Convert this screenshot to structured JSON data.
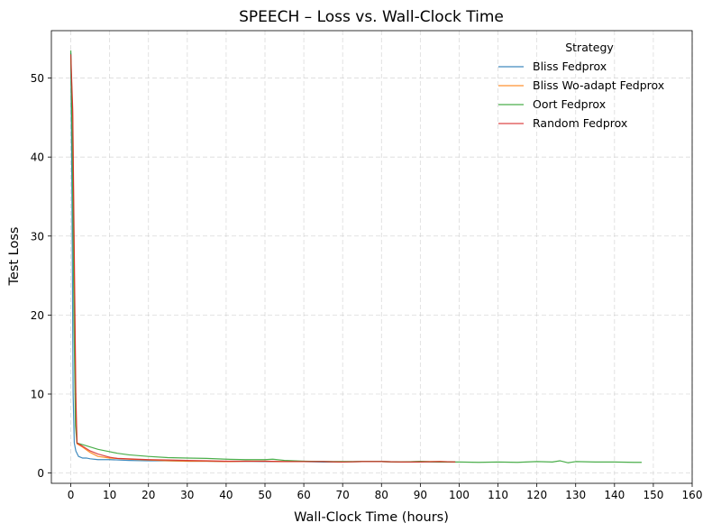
{
  "chart_data": {
    "type": "line",
    "title": "SPEECH – Loss vs. Wall-Clock Time",
    "xlabel": "Wall-Clock Time (hours)",
    "ylabel": "Test Loss",
    "xlim": [
      -5,
      160
    ],
    "ylim": [
      -1.3,
      56
    ],
    "xticks": [
      0,
      10,
      20,
      30,
      40,
      50,
      60,
      70,
      80,
      90,
      100,
      110,
      120,
      130,
      140,
      150,
      160
    ],
    "yticks": [
      0,
      10,
      20,
      30,
      40,
      50
    ],
    "grid": true,
    "legend": {
      "title": "Strategy",
      "placement": "top-right"
    },
    "series": [
      {
        "name": "Bliss Fedprox",
        "color": "#1f77b4",
        "points": [
          [
            0,
            53.2
          ],
          [
            0.3,
            35
          ],
          [
            0.6,
            10
          ],
          [
            0.9,
            3.8
          ],
          [
            1.3,
            2.8
          ],
          [
            2,
            2.1
          ],
          [
            3,
            1.9
          ],
          [
            4,
            1.9
          ],
          [
            5,
            1.8
          ],
          [
            7,
            1.7
          ],
          [
            10,
            1.7
          ],
          [
            15,
            1.6
          ],
          [
            20,
            1.55
          ],
          [
            25,
            1.55
          ],
          [
            30,
            1.5
          ],
          [
            35,
            1.5
          ],
          [
            40,
            1.45
          ],
          [
            45,
            1.5
          ],
          [
            50,
            1.45
          ],
          [
            55,
            1.45
          ],
          [
            60,
            1.45
          ],
          [
            65,
            1.4
          ],
          [
            70,
            1.4
          ],
          [
            75,
            1.45
          ],
          [
            80,
            1.45
          ],
          [
            85,
            1.4
          ],
          [
            90,
            1.45
          ],
          [
            95,
            1.4
          ],
          [
            99,
            1.4
          ]
        ]
      },
      {
        "name": "Bliss Wo-adapt Fedprox",
        "color": "#ff7f0e",
        "points": [
          [
            0,
            52.5
          ],
          [
            0.5,
            45
          ],
          [
            0.9,
            25
          ],
          [
            1.3,
            8
          ],
          [
            1.6,
            3.7
          ],
          [
            3,
            3.3
          ],
          [
            5,
            2.6
          ],
          [
            7,
            2.1
          ],
          [
            10,
            1.9
          ],
          [
            15,
            1.75
          ],
          [
            20,
            1.65
          ],
          [
            25,
            1.55
          ],
          [
            30,
            1.5
          ],
          [
            35,
            1.5
          ],
          [
            40,
            1.45
          ],
          [
            45,
            1.5
          ],
          [
            50,
            1.5
          ],
          [
            55,
            1.45
          ],
          [
            60,
            1.45
          ],
          [
            65,
            1.45
          ],
          [
            70,
            1.4
          ],
          [
            75,
            1.45
          ],
          [
            80,
            1.45
          ],
          [
            85,
            1.4
          ],
          [
            90,
            1.45
          ],
          [
            95,
            1.45
          ],
          [
            99,
            1.4
          ]
        ]
      },
      {
        "name": "Oort Fedprox",
        "color": "#2ca02c",
        "points": [
          [
            0,
            53.5
          ],
          [
            0.4,
            40
          ],
          [
            0.8,
            20
          ],
          [
            1.2,
            6
          ],
          [
            1.6,
            3.8
          ],
          [
            3,
            3.6
          ],
          [
            5,
            3.3
          ],
          [
            7,
            3.0
          ],
          [
            10,
            2.7
          ],
          [
            12,
            2.5
          ],
          [
            15,
            2.3
          ],
          [
            20,
            2.1
          ],
          [
            25,
            1.95
          ],
          [
            30,
            1.9
          ],
          [
            35,
            1.85
          ],
          [
            40,
            1.75
          ],
          [
            45,
            1.7
          ],
          [
            50,
            1.7
          ],
          [
            52,
            1.75
          ],
          [
            55,
            1.6
          ],
          [
            60,
            1.5
          ],
          [
            65,
            1.45
          ],
          [
            70,
            1.45
          ],
          [
            75,
            1.45
          ],
          [
            80,
            1.45
          ],
          [
            85,
            1.4
          ],
          [
            90,
            1.45
          ],
          [
            95,
            1.4
          ],
          [
            100,
            1.4
          ],
          [
            105,
            1.35
          ],
          [
            110,
            1.4
          ],
          [
            115,
            1.35
          ],
          [
            120,
            1.45
          ],
          [
            124,
            1.4
          ],
          [
            126,
            1.55
          ],
          [
            128,
            1.3
          ],
          [
            130,
            1.45
          ],
          [
            135,
            1.4
          ],
          [
            140,
            1.4
          ],
          [
            145,
            1.35
          ],
          [
            147,
            1.35
          ]
        ]
      },
      {
        "name": "Random Fedprox",
        "color": "#d62728",
        "points": [
          [
            0,
            53.0
          ],
          [
            0.5,
            46
          ],
          [
            0.9,
            28
          ],
          [
            1.3,
            10
          ],
          [
            1.6,
            3.8
          ],
          [
            3,
            3.4
          ],
          [
            5,
            2.8
          ],
          [
            7,
            2.4
          ],
          [
            10,
            2.0
          ],
          [
            12,
            1.85
          ],
          [
            15,
            1.8
          ],
          [
            20,
            1.7
          ],
          [
            25,
            1.65
          ],
          [
            30,
            1.6
          ],
          [
            35,
            1.55
          ],
          [
            40,
            1.5
          ],
          [
            45,
            1.5
          ],
          [
            50,
            1.5
          ],
          [
            55,
            1.45
          ],
          [
            60,
            1.45
          ],
          [
            65,
            1.45
          ],
          [
            70,
            1.4
          ],
          [
            75,
            1.45
          ],
          [
            80,
            1.45
          ],
          [
            85,
            1.4
          ],
          [
            90,
            1.4
          ],
          [
            95,
            1.45
          ],
          [
            99,
            1.4
          ]
        ]
      }
    ]
  }
}
